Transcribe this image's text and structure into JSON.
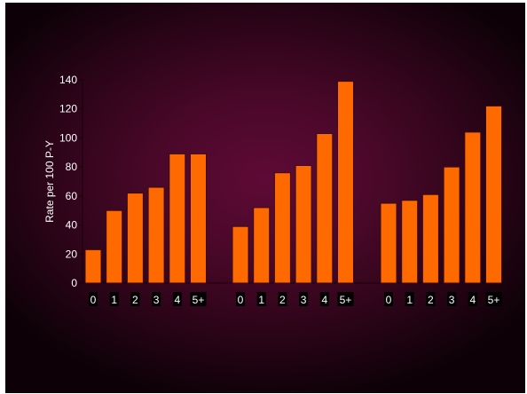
{
  "chart_data": {
    "type": "bar",
    "title": "",
    "xlabel": "",
    "ylabel": "Rate per 100 P-Y",
    "ylim": [
      0,
      140
    ],
    "yticks": [
      0,
      20,
      40,
      60,
      80,
      100,
      120,
      140
    ],
    "grid": false,
    "legend": "none",
    "bar_color": "#ff6a00",
    "bar_stroke": "#3a0a14",
    "groups": [
      {
        "categories": [
          "0",
          "1",
          "2",
          "3",
          "4",
          "5+"
        ],
        "values": [
          23,
          50,
          62,
          66,
          89,
          89
        ]
      },
      {
        "categories": [
          "0",
          "1",
          "2",
          "3",
          "4",
          "5+"
        ],
        "values": [
          39,
          52,
          76,
          81,
          103,
          139
        ]
      },
      {
        "categories": [
          "0",
          "1",
          "2",
          "3",
          "4",
          "5+"
        ],
        "values": [
          55,
          57,
          61,
          80,
          104,
          122
        ]
      }
    ]
  }
}
